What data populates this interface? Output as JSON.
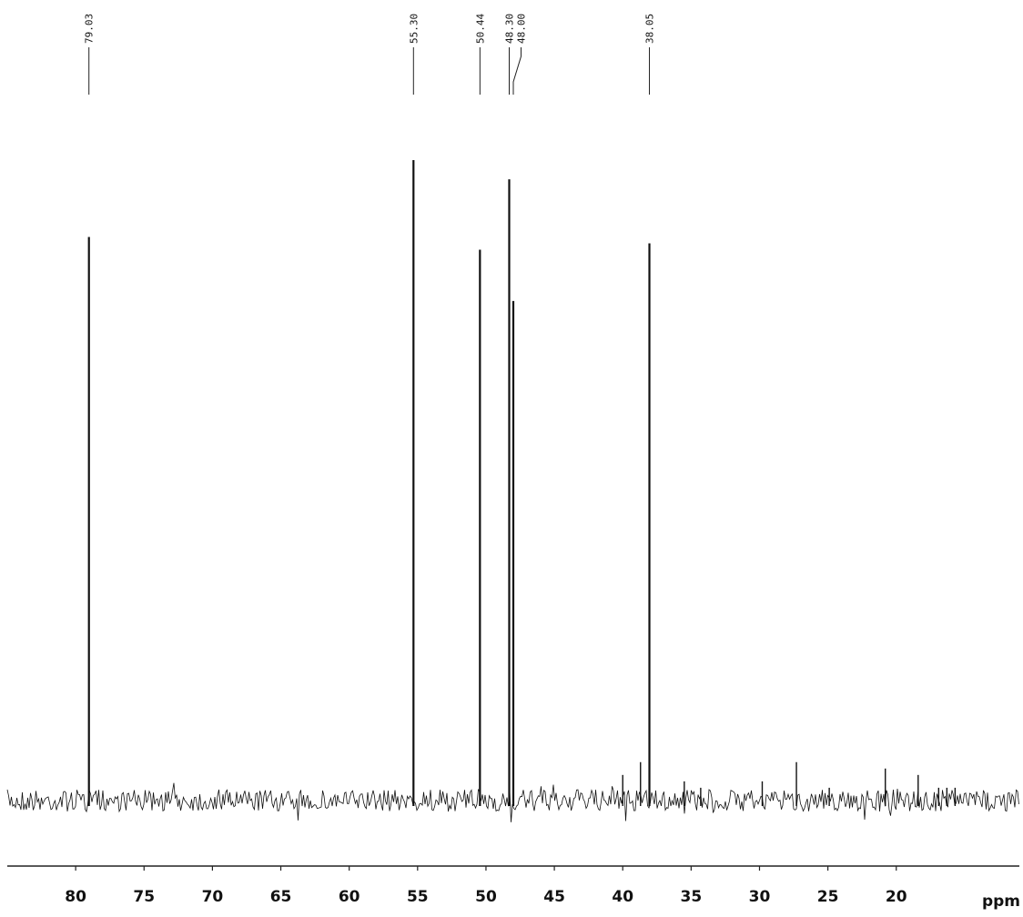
{
  "chart_data": {
    "type": "spectrum",
    "x": [
      79.03,
      55.3,
      50.44,
      48.3,
      48.0,
      38.05,
      40.0,
      38.7,
      35.5,
      34.3,
      29.8,
      27.3,
      24.9,
      20.8,
      18.4,
      16.9,
      16.3,
      15.7
    ],
    "values": [
      88,
      100,
      86,
      97,
      78,
      87,
      4,
      6,
      3,
      2,
      3,
      6,
      2,
      5,
      4,
      2,
      2,
      2
    ],
    "peak_labels": [
      "79.03",
      "55.30",
      "50.44",
      "48.30",
      "48.00",
      "38.05",
      null,
      null,
      null,
      null,
      null,
      null,
      null,
      null,
      null,
      null,
      null,
      null
    ],
    "color": "#111111",
    "xlim": [
      85,
      11
    ],
    "ylim": [
      0,
      100
    ],
    "xticks": [
      80,
      75,
      70,
      65,
      60,
      55,
      50,
      45,
      40,
      35,
      30,
      25,
      20
    ],
    "x_label": "ppm"
  }
}
